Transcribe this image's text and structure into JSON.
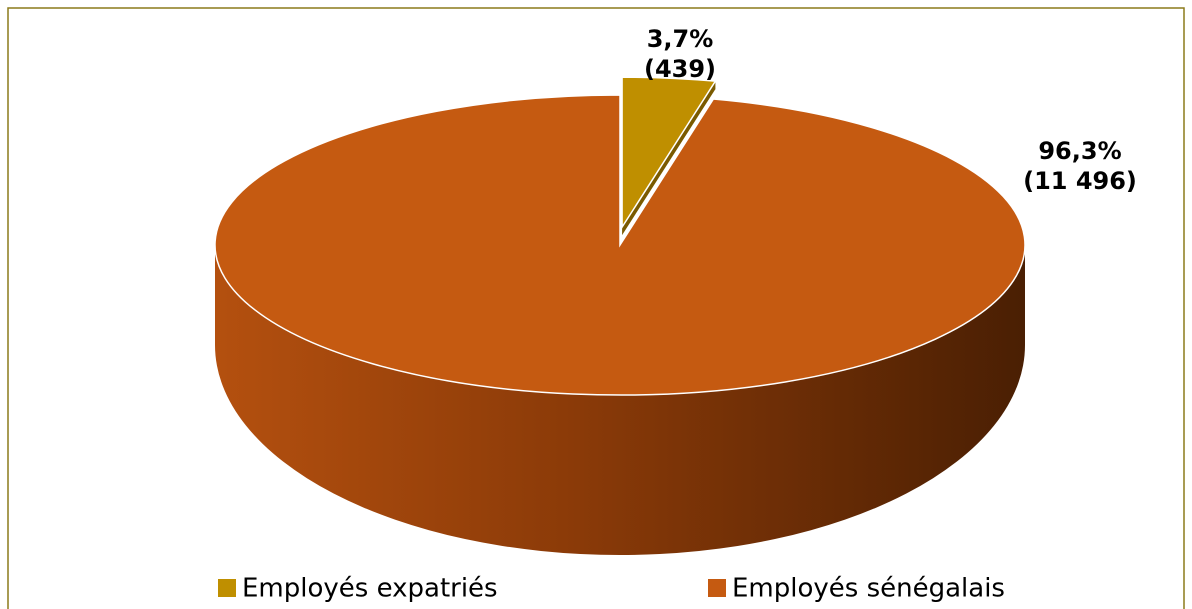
{
  "chart_data": {
    "type": "pie3d",
    "categories": [
      "Employés expatriés",
      "Employés sénégalais"
    ],
    "values": [
      3.7,
      96.3
    ],
    "value_labels": [
      "3,7%",
      "96,3%"
    ],
    "counts": [
      439,
      11496
    ],
    "count_labels": [
      "(439)",
      "(11 496)"
    ],
    "colors": [
      "#bf8f00",
      "#c55a11"
    ],
    "legend": "bottom"
  }
}
